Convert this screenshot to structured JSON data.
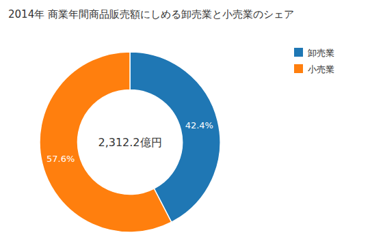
{
  "chart_data": {
    "type": "pie",
    "title": "2014年 商業年間商品販売額にしめる卸売業と小売業のシェア",
    "categories": [
      "卸売業",
      "小売業"
    ],
    "values": [
      42.4,
      57.6
    ],
    "value_labels": [
      "42.4%",
      "57.6%"
    ],
    "data_labels": true,
    "annotations": [
      "2,312.2億円"
    ],
    "legend": "upper right"
  }
}
